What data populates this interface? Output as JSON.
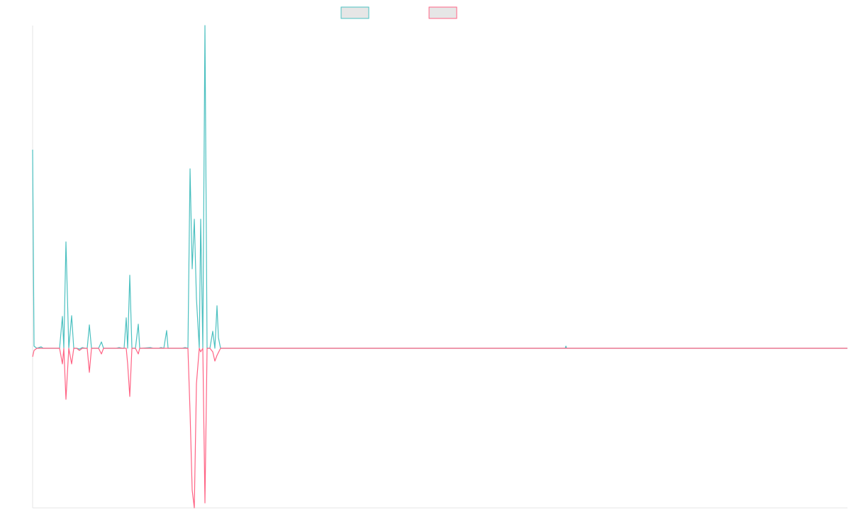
{
  "chart_data": {
    "type": "line",
    "xlim": [
      0,
      1149
    ],
    "ylim": [
      -45,
      91
    ],
    "series": [
      {
        "color": "#4bc0c0",
        "x": [
          0,
          2,
          6,
          12,
          15,
          38,
          42,
          44,
          47,
          51,
          55,
          58,
          62,
          66,
          70,
          74,
          77,
          80,
          83,
          93,
          97,
          100,
          118,
          122,
          126,
          129,
          132,
          134,
          137,
          140,
          145,
          149,
          151,
          154,
          166,
          170,
          178,
          181,
          185,
          189,
          191,
          208,
          211,
          215,
          219,
          222,
          225,
          228,
          231,
          235,
          237,
          240,
          243,
          246,
          250,
          254,
          257,
          260,
          262,
          265,
          751,
          752,
          753,
          1149
        ],
        "values": [
          56,
          0.6,
          0,
          0.4,
          0,
          0,
          9,
          0,
          30,
          0,
          9.2,
          0,
          0,
          -0.2,
          0.2,
          0,
          0,
          6.6,
          0,
          0,
          1.8,
          0,
          0,
          0.2,
          0,
          0,
          8.6,
          0,
          20.6,
          0,
          0,
          6.8,
          0,
          0,
          0.2,
          0,
          0,
          0.2,
          0,
          5,
          0,
          0,
          0,
          0.2,
          0,
          50.6,
          22.4,
          36.4,
          14,
          0,
          36.4,
          0,
          91,
          0,
          0,
          4.8,
          0,
          12,
          3,
          0,
          0,
          0.6,
          0,
          0
        ]
      },
      {
        "color": "#ff6384",
        "x": [
          0,
          2,
          6,
          38,
          42,
          44,
          47,
          51,
          55,
          58,
          62,
          66,
          70,
          77,
          80,
          83,
          93,
          97,
          100,
          132,
          134,
          137,
          140,
          145,
          149,
          151,
          219,
          222,
          225,
          228,
          231,
          235,
          237,
          240,
          243,
          246,
          250,
          254,
          257,
          260,
          265,
          1149
        ],
        "values": [
          -2.4,
          -0.6,
          0,
          0,
          -4.4,
          0,
          -14.4,
          0,
          -4.4,
          0,
          0,
          -0.6,
          0,
          0,
          -6.8,
          0,
          0,
          -1.6,
          0,
          0,
          -4.4,
          -13.6,
          0,
          0,
          -1.6,
          0,
          0,
          -18,
          -40,
          -45,
          -10,
          0,
          -1,
          0,
          -43.6,
          0,
          0,
          -1,
          -3.6,
          -2,
          0,
          0
        ]
      }
    ]
  }
}
